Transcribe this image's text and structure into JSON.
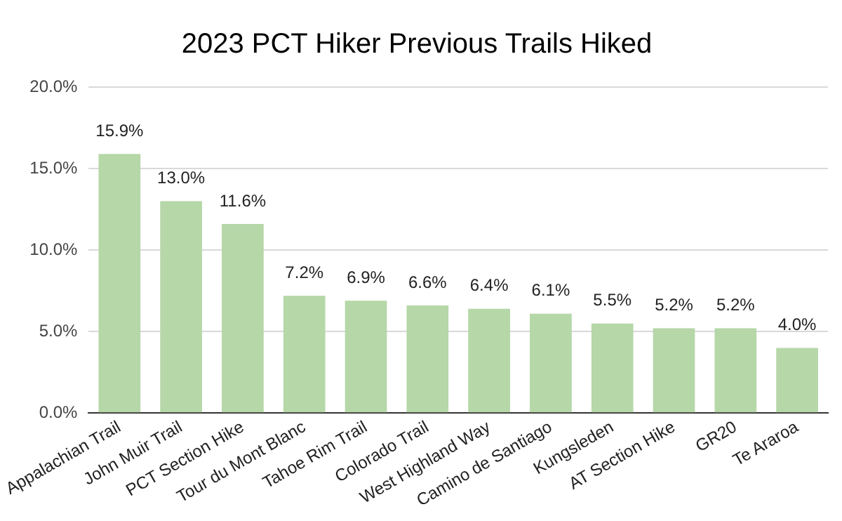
{
  "chart_data": {
    "type": "bar",
    "title": "2023 PCT Hiker Previous Trails Hiked",
    "categories": [
      "Appalachian Trail",
      "John Muir Trail",
      "PCT Section Hike",
      "Tour du Mont Blanc",
      "Tahoe Rim Trail",
      "Colorado Trail",
      "West Highland Way",
      "Camino de Santiago",
      "Kungsleden",
      "AT Section Hike",
      "GR20",
      "Te Araroa"
    ],
    "values": [
      15.9,
      13.0,
      11.6,
      7.2,
      6.9,
      6.6,
      6.4,
      6.1,
      5.5,
      5.2,
      5.2,
      4.0
    ],
    "value_labels": [
      "15.9%",
      "13.0%",
      "11.6%",
      "7.2%",
      "6.9%",
      "6.6%",
      "6.4%",
      "6.1%",
      "5.5%",
      "5.2%",
      "5.2%",
      "4.0%"
    ],
    "color": "#b6d7a8",
    "ylim": [
      0,
      20
    ],
    "yticks": [
      {
        "value": 0,
        "label": "0.0%"
      },
      {
        "value": 5,
        "label": "5.0%"
      },
      {
        "value": 10,
        "label": "10.0%"
      },
      {
        "value": 15,
        "label": "15.0%"
      },
      {
        "value": 20,
        "label": "20.0%"
      }
    ],
    "grid": "y",
    "legend": false
  }
}
